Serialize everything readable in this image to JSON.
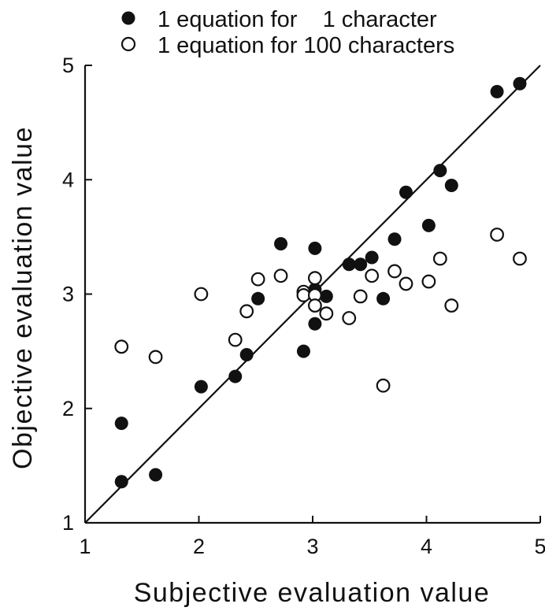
{
  "chart_data": {
    "type": "scatter",
    "xlabel": "Subjective evaluation value",
    "ylabel": "Objective evaluation value",
    "xlim": [
      1,
      5
    ],
    "ylim": [
      1,
      5
    ],
    "xticks": [
      "1",
      "2",
      "3",
      "4",
      "5"
    ],
    "yticks": [
      "1",
      "2",
      "3",
      "4",
      "5"
    ],
    "grid": false,
    "legend_position": "top",
    "reference_line": {
      "from": [
        1,
        1
      ],
      "to": [
        5,
        5
      ]
    },
    "series": [
      {
        "name": "1 equation for    1 character",
        "marker": "filled-circle",
        "points": [
          [
            1.32,
            1.87
          ],
          [
            1.32,
            1.36
          ],
          [
            1.62,
            1.42
          ],
          [
            2.02,
            2.19
          ],
          [
            2.32,
            2.28
          ],
          [
            2.42,
            2.47
          ],
          [
            2.52,
            2.96
          ],
          [
            2.72,
            3.44
          ],
          [
            2.92,
            2.5
          ],
          [
            3.02,
            3.4
          ],
          [
            3.02,
            2.74
          ],
          [
            3.02,
            3.04
          ],
          [
            3.12,
            2.98
          ],
          [
            3.32,
            3.26
          ],
          [
            3.42,
            3.26
          ],
          [
            3.52,
            3.32
          ],
          [
            3.62,
            2.96
          ],
          [
            3.72,
            3.48
          ],
          [
            3.82,
            3.89
          ],
          [
            4.02,
            3.6
          ],
          [
            4.12,
            4.08
          ],
          [
            4.22,
            3.95
          ],
          [
            4.62,
            4.77
          ],
          [
            4.82,
            4.84
          ]
        ]
      },
      {
        "name": "1 equation for 100 characters",
        "marker": "open-circle",
        "points": [
          [
            1.32,
            2.54
          ],
          [
            1.62,
            2.45
          ],
          [
            2.02,
            3.0
          ],
          [
            2.32,
            2.6
          ],
          [
            2.42,
            2.85
          ],
          [
            2.52,
            3.13
          ],
          [
            2.72,
            3.16
          ],
          [
            2.92,
            3.02
          ],
          [
            2.92,
            2.99
          ],
          [
            3.02,
            3.14
          ],
          [
            3.02,
            2.99
          ],
          [
            3.02,
            2.9
          ],
          [
            3.12,
            2.83
          ],
          [
            3.32,
            2.79
          ],
          [
            3.42,
            2.98
          ],
          [
            3.52,
            3.16
          ],
          [
            3.62,
            2.2
          ],
          [
            3.72,
            3.2
          ],
          [
            3.82,
            3.09
          ],
          [
            4.02,
            3.11
          ],
          [
            4.12,
            3.31
          ],
          [
            4.22,
            2.9
          ],
          [
            4.62,
            3.52
          ],
          [
            4.82,
            3.31
          ]
        ]
      }
    ]
  }
}
